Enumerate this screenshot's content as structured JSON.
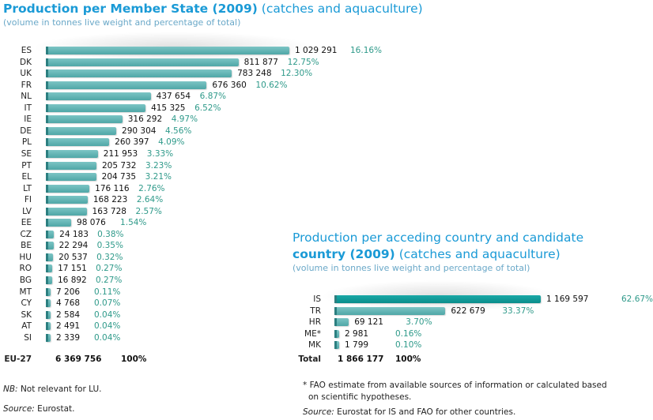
{
  "chart_data": [
    {
      "type": "bar",
      "orientation": "horizontal",
      "title": "Production per Member State (2009)",
      "title_suffix": "(catches and aquaculture)",
      "subtitle": "(volume in tonnes live weight and percentage of total)",
      "categories": [
        "ES",
        "DK",
        "UK",
        "FR",
        "NL",
        "IT",
        "IE",
        "DE",
        "PL",
        "SE",
        "PT",
        "EL",
        "LT",
        "FI",
        "LV",
        "EE",
        "CZ",
        "BE",
        "HU",
        "RO",
        "BG",
        "MT",
        "CY",
        "SK",
        "AT",
        "SI"
      ],
      "values": [
        1029291,
        811877,
        783248,
        676360,
        437654,
        415325,
        316292,
        290304,
        260397,
        211953,
        205732,
        204735,
        176116,
        168223,
        163728,
        98076,
        24183,
        22294,
        20537,
        17151,
        16892,
        7206,
        4768,
        2584,
        2491,
        2339
      ],
      "value_labels": [
        "1 029 291",
        "811 877",
        "783 248",
        "676 360",
        "437 654",
        "415 325",
        "316 292",
        "290 304",
        "260 397",
        "211 953",
        "205 732",
        "204 735",
        "176 116",
        "168 223",
        "163 728",
        "98 076",
        "24 183",
        "22 294",
        "20 537",
        "17 151",
        "16 892",
        "7 206",
        "4 768",
        "2 584",
        "2 491",
        "2 339"
      ],
      "percent_labels": [
        "16.16%",
        "12.75%",
        "12.30%",
        "10.62%",
        "6.87%",
        "6.52%",
        "4.97%",
        "4.56%",
        "4.09%",
        "3.33%",
        "3.23%",
        "3.21%",
        "2.76%",
        "2.64%",
        "2.57%",
        "1.54%",
        "0.38%",
        "0.35%",
        "0.32%",
        "0.27%",
        "0.27%",
        "0.11%",
        "0.07%",
        "0.04%",
        "0.04%",
        "0.04%"
      ],
      "total": {
        "label": "EU-27",
        "value": "6 369 756",
        "percent": "100%"
      },
      "bar_color": "#5fb0b0"
    },
    {
      "type": "bar",
      "orientation": "horizontal",
      "title": "Production per acceding country and candidate country (2009)",
      "title_line1": "Production per acceding country and candidate",
      "title_line2": "country (2009)",
      "title_suffix": "(catches and aquaculture)",
      "subtitle": "(volume in tonnes live weight and percentage of total)",
      "categories": [
        "IS",
        "TR",
        "HR",
        "ME*",
        "MK"
      ],
      "values": [
        1169597,
        622679,
        69121,
        2981,
        1799
      ],
      "value_labels": [
        "1 169 597",
        "622 679",
        "69 121",
        "2 981",
        "1 799"
      ],
      "percent_labels": [
        "62.67%",
        "33.37%",
        "3.70%",
        "0.16%",
        "0.10%"
      ],
      "total": {
        "label": "Total",
        "value": "1 866 177",
        "percent": "100%"
      },
      "bar_color": "#5fb0b0",
      "highlight_color": "#0e9a98"
    }
  ],
  "notes": {
    "nb_prefix": "NB:",
    "nb_text": " Not relevant for LU.",
    "source_prefix": "Source:",
    "source_text": " Eurostat.",
    "fao_note": "* FAO estimate from available sources of information or calculated based",
    "fao_note2": "on scientific hypotheses.",
    "source2_text": " Eurostat for IS and FAO for other countries."
  }
}
